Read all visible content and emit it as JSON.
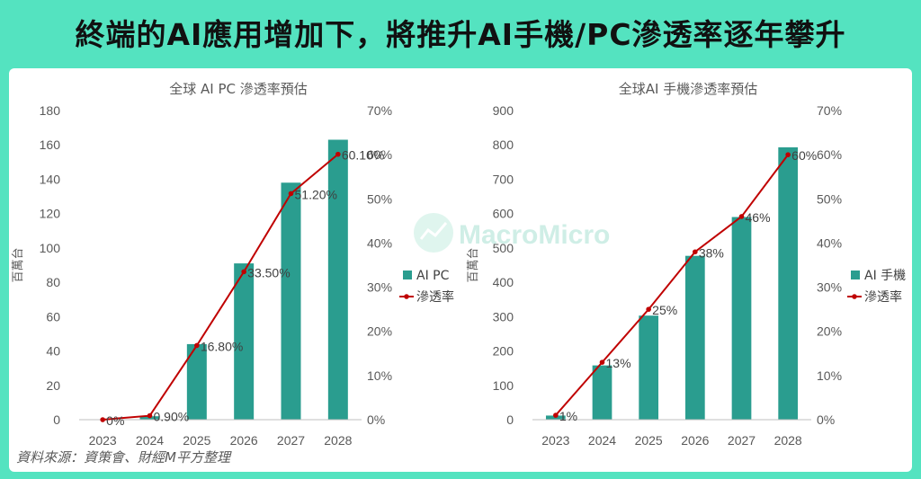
{
  "header": {
    "title": "終端的AI應用增加下，將推升AI手機/PC滲透率逐年攀升"
  },
  "watermark": {
    "text": "MacroMicro",
    "icon": "chart-logo-icon"
  },
  "source": {
    "text": "資料來源：資策會、財經M平方整理"
  },
  "colors": {
    "bar": "#2a9d8f",
    "line": "#c00000",
    "title_bg": "#54e3c0"
  },
  "chart_data": [
    {
      "type": "bar",
      "title": "全球 AI PC 滲透率預估",
      "ylabel": "百萬台",
      "categories": [
        "2023",
        "2024",
        "2025",
        "2026",
        "2027",
        "2028"
      ],
      "ylim": [
        0,
        180
      ],
      "y_ticks": [
        "0",
        "20",
        "40",
        "60",
        "80",
        "100",
        "120",
        "140",
        "160",
        "180"
      ],
      "y2lim": [
        0,
        70
      ],
      "y2_ticks": [
        "0%",
        "10%",
        "20%",
        "30%",
        "40%",
        "50%",
        "60%",
        "70%"
      ],
      "series": [
        {
          "name": "AI PC",
          "kind": "bar",
          "axis": "left",
          "values": [
            0,
            2,
            44,
            91,
            138,
            163
          ]
        },
        {
          "name": "滲透率",
          "kind": "line",
          "axis": "right",
          "values": [
            0,
            0.9,
            16.8,
            33.5,
            51.2,
            60.1
          ],
          "labels": [
            "0%",
            "0.90%",
            "16.80%",
            "33.50%",
            "51.20%",
            "60.10%"
          ]
        }
      ],
      "legend": "right",
      "grid": false
    },
    {
      "type": "bar",
      "title": "全球AI 手機滲透率預估",
      "ylabel": "百萬台",
      "categories": [
        "2023",
        "2024",
        "2025",
        "2026",
        "2027",
        "2028"
      ],
      "ylim": [
        0,
        900
      ],
      "y_ticks": [
        "0",
        "100",
        "200",
        "300",
        "400",
        "500",
        "600",
        "700",
        "800",
        "900"
      ],
      "y2lim": [
        0,
        70
      ],
      "y2_ticks": [
        "0%",
        "10%",
        "20%",
        "30%",
        "40%",
        "50%",
        "60%",
        "70%"
      ],
      "series": [
        {
          "name": "AI 手機",
          "kind": "bar",
          "axis": "left",
          "values": [
            12,
            158,
            303,
            477,
            590,
            793
          ]
        },
        {
          "name": "滲透率",
          "kind": "line",
          "axis": "right",
          "values": [
            1,
            13,
            25,
            38,
            46,
            60
          ],
          "labels": [
            "1%",
            "13%",
            "25%",
            "38%",
            "46%",
            "60%"
          ]
        }
      ],
      "legend": "right",
      "grid": false
    }
  ]
}
